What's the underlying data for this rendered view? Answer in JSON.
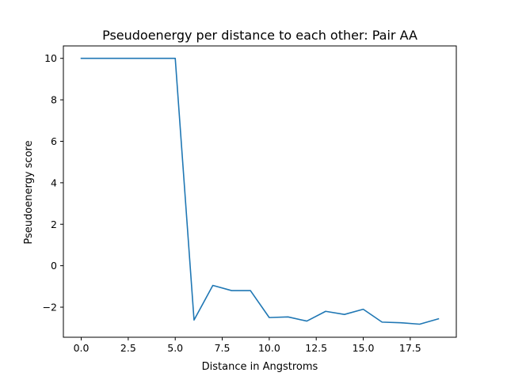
{
  "chart_data": {
    "type": "line",
    "title": "Pseudoenergy per distance to each other: Pair AA",
    "xlabel": "Distance in Angstroms",
    "ylabel": "Pseudoenergy score",
    "xlim": [
      -0.95,
      19.95
    ],
    "ylim": [
      -3.45,
      10.6
    ],
    "x_ticks": [
      0.0,
      2.5,
      5.0,
      7.5,
      10.0,
      12.5,
      15.0,
      17.5
    ],
    "x_tick_labels": [
      "0.0",
      "2.5",
      "5.0",
      "7.5",
      "10.0",
      "12.5",
      "15.0",
      "17.5"
    ],
    "y_ticks": [
      -2,
      0,
      2,
      4,
      6,
      8,
      10
    ],
    "y_tick_labels": [
      "−2",
      "0",
      "2",
      "4",
      "6",
      "8",
      "10"
    ],
    "grid": false,
    "series": [
      {
        "color": "#1f77b4",
        "x": [
          0,
          1,
          2,
          3,
          4,
          5,
          6,
          7,
          8,
          9,
          10,
          11,
          12,
          13,
          14,
          15,
          16,
          17,
          18,
          19
        ],
        "values": [
          10,
          10,
          10,
          10,
          10,
          10,
          -2.62,
          -0.95,
          -1.2,
          -1.2,
          -2.5,
          -2.47,
          -2.67,
          -2.2,
          -2.35,
          -2.1,
          -2.72,
          -2.75,
          -2.82,
          -2.56
        ]
      }
    ]
  }
}
